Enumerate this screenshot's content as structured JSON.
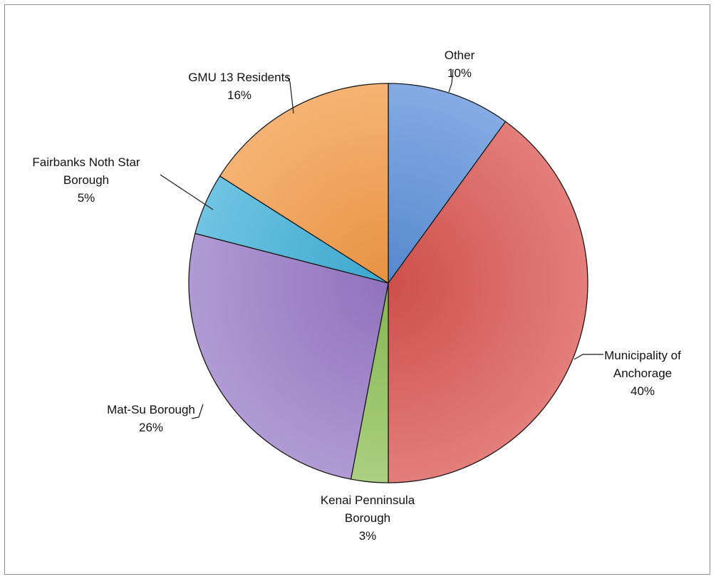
{
  "chart_data": {
    "type": "pie",
    "title": "",
    "start_angle_deg": 0,
    "direction": "clockwise",
    "slices": [
      {
        "label_lines": [
          "Other"
        ],
        "value": 10,
        "value_label": "10%",
        "color": "#5b8fd9"
      },
      {
        "label_lines": [
          "Municipality of",
          "Anchorage"
        ],
        "value": 40,
        "value_label": "40%",
        "color": "#d9534f"
      },
      {
        "label_lines": [
          "Kenai Penninsula",
          "Borough"
        ],
        "value": 3,
        "value_label": "3%",
        "color": "#8dc055"
      },
      {
        "label_lines": [
          "Mat-Su Borough"
        ],
        "value": 26,
        "value_label": "26%",
        "color": "#9678c6"
      },
      {
        "label_lines": [
          "Fairbanks Noth Star",
          "Borough"
        ],
        "value": 5,
        "value_label": "5%",
        "color": "#3fb0d8"
      },
      {
        "label_lines": [
          "GMU 13 Residents"
        ],
        "value": 16,
        "value_label": "16%",
        "color": "#f39a45"
      }
    ]
  }
}
